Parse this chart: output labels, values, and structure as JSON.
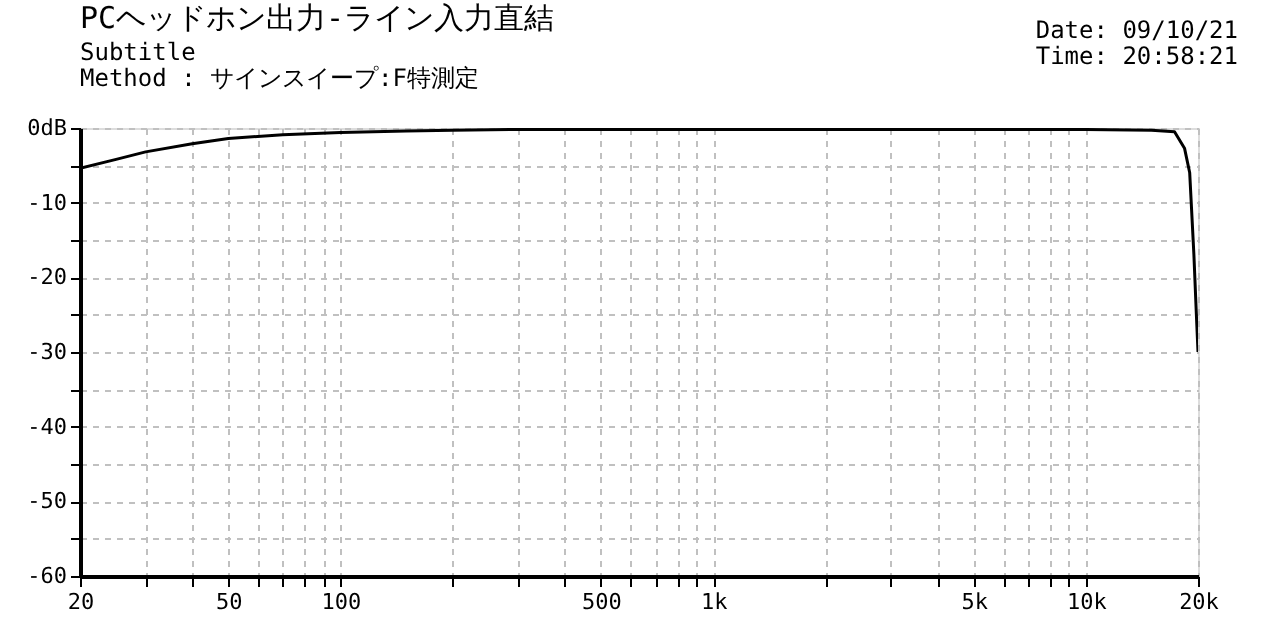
{
  "chart_data": {
    "type": "line",
    "title": "PCヘッドホン出力-ライン入力直結",
    "subtitle": "Subtitle",
    "annotations": [
      "Method : サインスイープ:F特測定",
      "Date: 09/10/21",
      "Time: 20:58:21"
    ],
    "x": [
      20,
      25,
      30,
      40,
      50,
      70,
      100,
      150,
      200,
      300,
      500,
      1000,
      2000,
      5000,
      10000,
      15000,
      17300,
      18400,
      19000,
      19500,
      19800,
      20000
    ],
    "series": [
      {
        "color": "#000000",
        "values": [
          -5.4,
          -4.2,
          -3.2,
          -2.1,
          -1.4,
          -0.9,
          -0.6,
          -0.4,
          -0.3,
          -0.2,
          -0.2,
          -0.2,
          -0.2,
          -0.2,
          -0.2,
          -0.3,
          -0.5,
          -2.7,
          -6,
          -17,
          -25,
          -30
        ]
      }
    ],
    "xlim": [
      20,
      20000
    ],
    "ylim": [
      -60,
      0
    ],
    "log": "x",
    "grid": true,
    "line_style": "solid",
    "marker": "none",
    "xticks": [
      20,
      {
        "value": 30,
        "label": null
      },
      {
        "value": 40,
        "label": null
      },
      50,
      {
        "value": 60,
        "label": null
      },
      {
        "value": 70,
        "label": null
      },
      {
        "value": 80,
        "label": null
      },
      {
        "value": 90,
        "label": null
      },
      100,
      {
        "value": 200,
        "label": null
      },
      {
        "value": 300,
        "label": null
      },
      {
        "value": 400,
        "label": null
      },
      500,
      {
        "value": 600,
        "label": null
      },
      {
        "value": 700,
        "label": null
      },
      {
        "value": 800,
        "label": null
      },
      {
        "value": 900,
        "label": null
      },
      {
        "value": 1000,
        "label": "1k"
      },
      {
        "value": 2000,
        "label": null
      },
      {
        "value": 3000,
        "label": null
      },
      {
        "value": 4000,
        "label": null
      },
      {
        "value": 5000,
        "label": "5k"
      },
      {
        "value": 6000,
        "label": null
      },
      {
        "value": 7000,
        "label": null
      },
      {
        "value": 8000,
        "label": null
      },
      {
        "value": 9000,
        "label": null
      },
      {
        "value": 10000,
        "label": "10k"
      },
      {
        "value": 20000,
        "label": "20k"
      }
    ],
    "yticks": [
      {
        "value": 0,
        "label": "0dB"
      },
      {
        "value": -5,
        "label": null
      },
      -10,
      {
        "value": -15,
        "label": null
      },
      -20,
      {
        "value": -25,
        "label": null
      },
      -30,
      {
        "value": -35,
        "label": null
      },
      -40,
      {
        "value": -45,
        "label": null
      },
      -50,
      {
        "value": -55,
        "label": null
      },
      -60
    ]
  }
}
